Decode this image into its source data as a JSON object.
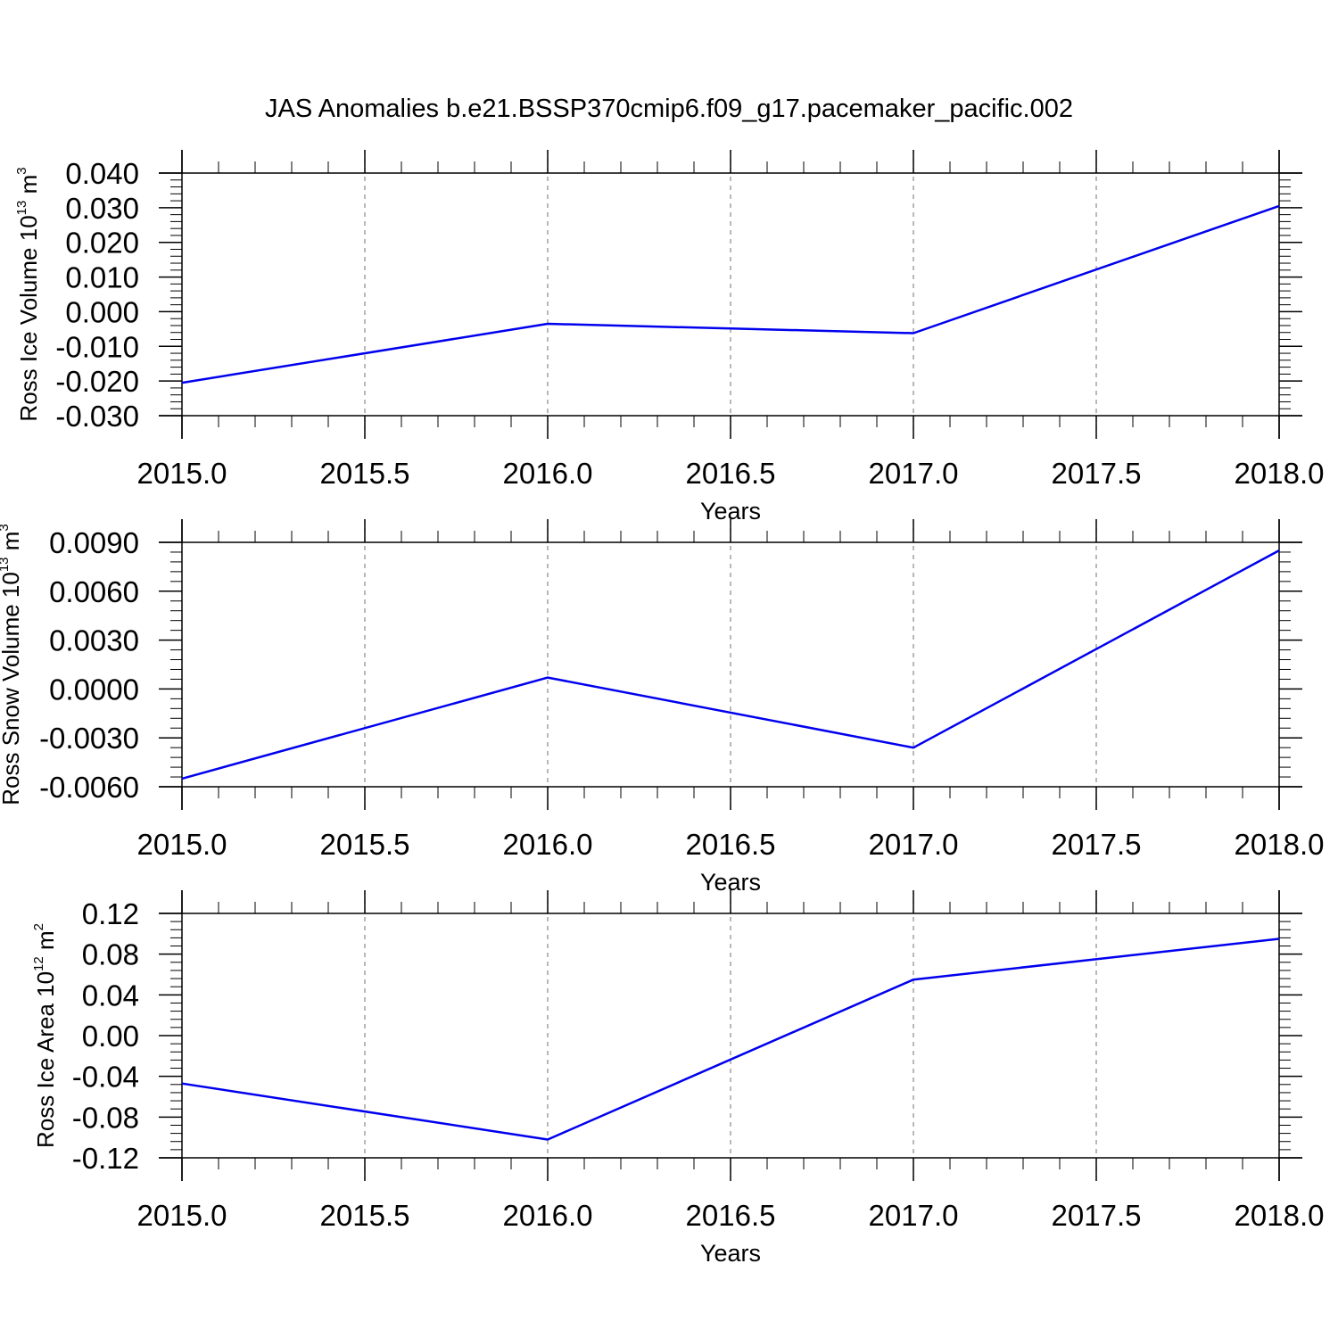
{
  "figure": {
    "title": "JAS Anomalies b.e21.BSSP370cmip6.f09_g17.pacemaker_pacific.002"
  },
  "chart_data": [
    {
      "type": "line",
      "xlabel": "Years",
      "ylabel": {
        "text": "Ross Ice Volume 10",
        "exponent": "13",
        "unit": " m",
        "unit_exponent": "3"
      },
      "xlim": [
        2015.0,
        2018.0
      ],
      "ylim": [
        -0.03,
        0.04
      ],
      "xticks": [
        "2015.0",
        "2015.5",
        "2016.0",
        "2016.5",
        "2017.0",
        "2017.5",
        "2018.0"
      ],
      "yticks": [
        "0.040",
        "0.030",
        "0.020",
        "0.010",
        "0.000",
        "-0.010",
        "-0.020",
        "-0.030"
      ],
      "ytick_values": [
        0.04,
        0.03,
        0.02,
        0.01,
        0.0,
        -0.01,
        -0.02,
        -0.03
      ],
      "grid": "x-dashed",
      "line_color": "#0000ee",
      "series": [
        {
          "x": [
            2015,
            2016,
            2017,
            2018
          ],
          "values": [
            -0.0205,
            -0.0035,
            -0.0062,
            0.0305
          ]
        }
      ]
    },
    {
      "type": "line",
      "xlabel": "Years",
      "ylabel": {
        "text": "Ross Snow Volume 10",
        "exponent": "13",
        "unit": " m",
        "unit_exponent": "3"
      },
      "xlim": [
        2015.0,
        2018.0
      ],
      "ylim": [
        -0.006,
        0.009
      ],
      "xticks": [
        "2015.0",
        "2015.5",
        "2016.0",
        "2016.5",
        "2017.0",
        "2017.5",
        "2018.0"
      ],
      "yticks": [
        "0.0090",
        "0.0060",
        "0.0030",
        "0.0000",
        "-0.0030",
        "-0.0060"
      ],
      "ytick_values": [
        0.009,
        0.006,
        0.003,
        0.0,
        -0.003,
        -0.006
      ],
      "grid": "x-dashed",
      "line_color": "#0000ee",
      "series": [
        {
          "x": [
            2015,
            2016,
            2017,
            2018
          ],
          "values": [
            -0.0055,
            0.0007,
            -0.0036,
            0.0085
          ]
        }
      ]
    },
    {
      "type": "line",
      "xlabel": "Years",
      "ylabel": {
        "text": "Ross Ice Area 10",
        "exponent": "12",
        "unit": " m",
        "unit_exponent": "2"
      },
      "xlim": [
        2015.0,
        2018.0
      ],
      "ylim": [
        -0.12,
        0.12
      ],
      "xticks": [
        "2015.0",
        "2015.5",
        "2016.0",
        "2016.5",
        "2017.0",
        "2017.5",
        "2018.0"
      ],
      "yticks": [
        "0.12",
        "0.08",
        "0.04",
        "0.00",
        "-0.04",
        "-0.08",
        "-0.12"
      ],
      "ytick_values": [
        0.12,
        0.08,
        0.04,
        0.0,
        -0.04,
        -0.08,
        -0.12
      ],
      "grid": "x-dashed",
      "line_color": "#0000ee",
      "series": [
        {
          "x": [
            2015,
            2016,
            2017,
            2018
          ],
          "values": [
            -0.047,
            -0.102,
            0.055,
            0.095
          ]
        }
      ]
    }
  ]
}
